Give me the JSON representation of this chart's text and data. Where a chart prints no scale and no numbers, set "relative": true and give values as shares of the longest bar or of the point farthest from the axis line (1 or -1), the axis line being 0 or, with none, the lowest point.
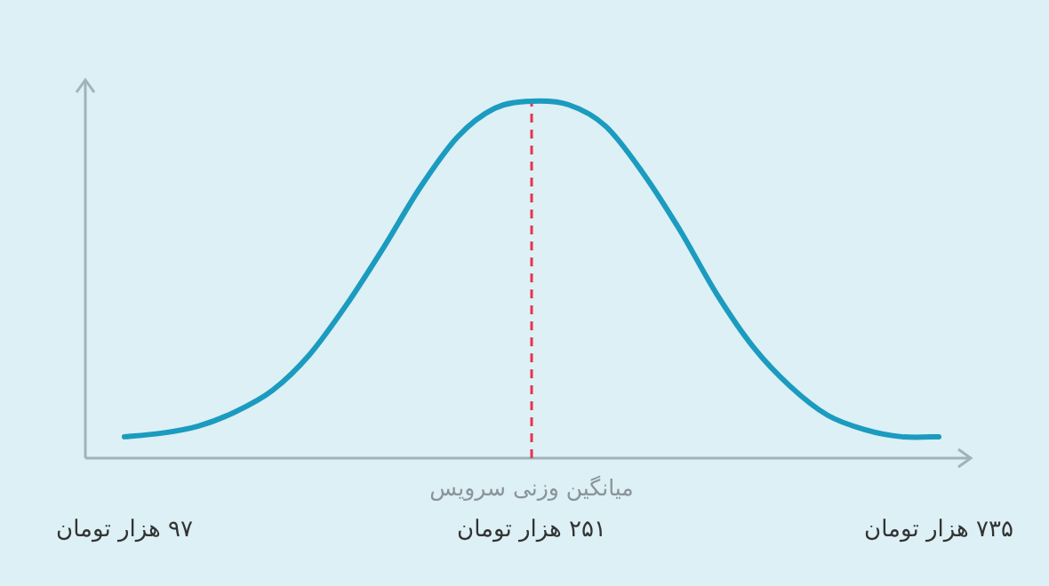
{
  "chart_data": {
    "type": "line",
    "relative": true,
    "categories": [
      "۹۷ هزار تومان",
      null,
      null,
      null,
      null,
      null,
      null,
      null,
      null,
      null,
      null,
      "۲۵۱ هزار تومان",
      null,
      null,
      null,
      null,
      null,
      null,
      null,
      null,
      null,
      null,
      "۷۳۵ هزار تومان"
    ],
    "series": [
      {
        "color": "#1b9bbf",
        "values": [
          0.06,
          0.07,
          0.09,
          0.13,
          0.19,
          0.29,
          0.43,
          0.59,
          0.76,
          0.9,
          0.98,
          1,
          0.99,
          0.93,
          0.8,
          0.64,
          0.46,
          0.31,
          0.2,
          0.12,
          0.08,
          0.06,
          0.06
        ]
      }
    ],
    "ref_lines": [
      {
        "axis": "x",
        "value": "۲۵۱ هزار تومان",
        "label": "میانگین وزنی سرویس",
        "color": "#e8344e",
        "line_style": "dashed"
      }
    ]
  }
}
